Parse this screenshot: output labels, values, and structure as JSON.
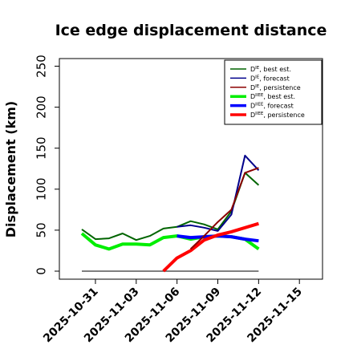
{
  "chart_data": {
    "type": "line",
    "title": "Ice edge displacement distance",
    "ylabel": "Displacement (km)",
    "xlabel": "",
    "ylim": [
      0,
      250
    ],
    "yticks": [
      "0",
      "50",
      "100",
      "150",
      "200",
      "250"
    ],
    "xlim": [
      "2025-10-29",
      "2025-11-16"
    ],
    "xticks": [
      "2025-10-31",
      "2025-11-03",
      "2025-11-06",
      "2025-11-09",
      "2025-11-12",
      "2025-11-15"
    ],
    "highlighted_xtick": "2025-11-06",
    "highlight_color": "#228b22",
    "zero_line": {
      "x": [
        "2025-10-30",
        "2025-11-12"
      ],
      "y": 0,
      "color": "#555555"
    },
    "legend_position": "top-right",
    "series": [
      {
        "name": "D^IE, best est.",
        "color": "#006400",
        "thick": false,
        "x": [
          "2025-10-30",
          "2025-10-31",
          "2025-11-01",
          "2025-11-02",
          "2025-11-03",
          "2025-11-04",
          "2025-11-05",
          "2025-11-06",
          "2025-11-07",
          "2025-11-08",
          "2025-11-09",
          "2025-11-10",
          "2025-11-11",
          "2025-11-12"
        ],
        "values": [
          51,
          39,
          40,
          46,
          38,
          43,
          52,
          54,
          61,
          57,
          51,
          73,
          120,
          105
        ]
      },
      {
        "name": "D^IE, forecast",
        "color": "#00008b",
        "thick": false,
        "x": [
          "2025-11-06",
          "2025-11-07",
          "2025-11-08",
          "2025-11-09",
          "2025-11-10",
          "2025-11-11",
          "2025-11-12"
        ],
        "values": [
          54,
          56,
          53,
          49,
          69,
          141,
          123
        ]
      },
      {
        "name": "D^IE, persistence",
        "color": "#8b0000",
        "thick": false,
        "x": [
          "2025-11-07",
          "2025-11-08",
          "2025-11-09",
          "2025-11-10",
          "2025-11-11",
          "2025-11-12"
        ],
        "values": [
          27,
          43,
          60,
          75,
          120,
          126
        ]
      },
      {
        "name": "D^IIEE, best est.",
        "color": "#00ee00",
        "thick": true,
        "x": [
          "2025-10-30",
          "2025-10-31",
          "2025-11-01",
          "2025-11-02",
          "2025-11-03",
          "2025-11-04",
          "2025-11-05",
          "2025-11-06",
          "2025-11-07",
          "2025-11-08",
          "2025-11-09",
          "2025-11-10",
          "2025-11-11",
          "2025-11-12"
        ],
        "values": [
          46,
          32,
          27,
          33,
          33,
          32,
          41,
          43,
          39,
          42,
          43,
          42,
          39,
          27
        ]
      },
      {
        "name": "D^IIEE, forecast",
        "color": "#0000ff",
        "thick": true,
        "x": [
          "2025-11-06",
          "2025-11-07",
          "2025-11-08",
          "2025-11-09",
          "2025-11-10",
          "2025-11-11",
          "2025-11-12"
        ],
        "values": [
          43,
          41,
          42,
          43,
          42,
          39,
          37
        ]
      },
      {
        "name": "D^IIEE, persistence",
        "color": "#ff0000",
        "thick": true,
        "x": [
          "2025-11-05",
          "2025-11-06",
          "2025-11-07",
          "2025-11-08",
          "2025-11-09",
          "2025-11-10",
          "2025-11-11",
          "2025-11-12"
        ],
        "values": [
          0,
          16,
          25,
          38,
          44,
          48,
          53,
          58
        ]
      }
    ],
    "legend_labels": [
      {
        "base": "D",
        "sup": "IE",
        "rest": ", best est."
      },
      {
        "base": "D",
        "sup": "IE",
        "rest": ", forecast"
      },
      {
        "base": "D",
        "sup": "IE",
        "rest": ", persistence"
      },
      {
        "base": "D",
        "sup": "IIEE",
        "rest": ", best est."
      },
      {
        "base": "D",
        "sup": "IIEE",
        "rest": ", forecast"
      },
      {
        "base": "D",
        "sup": "IIEE",
        "rest": ", persistence"
      }
    ]
  }
}
